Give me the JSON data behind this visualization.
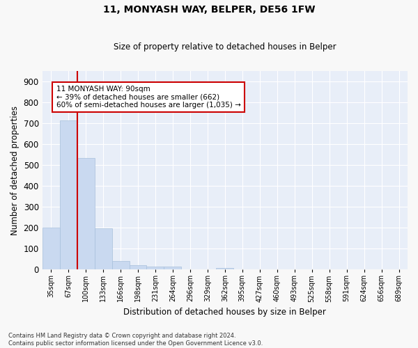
{
  "title": "11, MONYASH WAY, BELPER, DE56 1FW",
  "subtitle": "Size of property relative to detached houses in Belper",
  "xlabel": "Distribution of detached houses by size in Belper",
  "ylabel": "Number of detached properties",
  "categories": [
    "35sqm",
    "67sqm",
    "100sqm",
    "133sqm",
    "166sqm",
    "198sqm",
    "231sqm",
    "264sqm",
    "296sqm",
    "329sqm",
    "362sqm",
    "395sqm",
    "427sqm",
    "460sqm",
    "493sqm",
    "525sqm",
    "558sqm",
    "591sqm",
    "624sqm",
    "656sqm",
    "689sqm"
  ],
  "values": [
    201,
    714,
    533,
    196,
    42,
    20,
    15,
    13,
    0,
    0,
    9,
    0,
    0,
    0,
    0,
    0,
    0,
    0,
    0,
    0,
    0
  ],
  "bar_color": "#c9d9f0",
  "bar_edge_color": "#a8c0dc",
  "marker_label": "11 MONYASH WAY: 90sqm",
  "annotation_line1": "← 39% of detached houses are smaller (662)",
  "annotation_line2": "60% of semi-detached houses are larger (1,035) →",
  "annotation_box_color": "#ffffff",
  "annotation_box_edge": "#cc0000",
  "red_line_color": "#cc0000",
  "ylim": [
    0,
    950
  ],
  "yticks": [
    0,
    100,
    200,
    300,
    400,
    500,
    600,
    700,
    800,
    900
  ],
  "bg_color": "#e8eef8",
  "grid_color": "#ffffff",
  "footer_line1": "Contains HM Land Registry data © Crown copyright and database right 2024.",
  "footer_line2": "Contains public sector information licensed under the Open Government Licence v3.0."
}
